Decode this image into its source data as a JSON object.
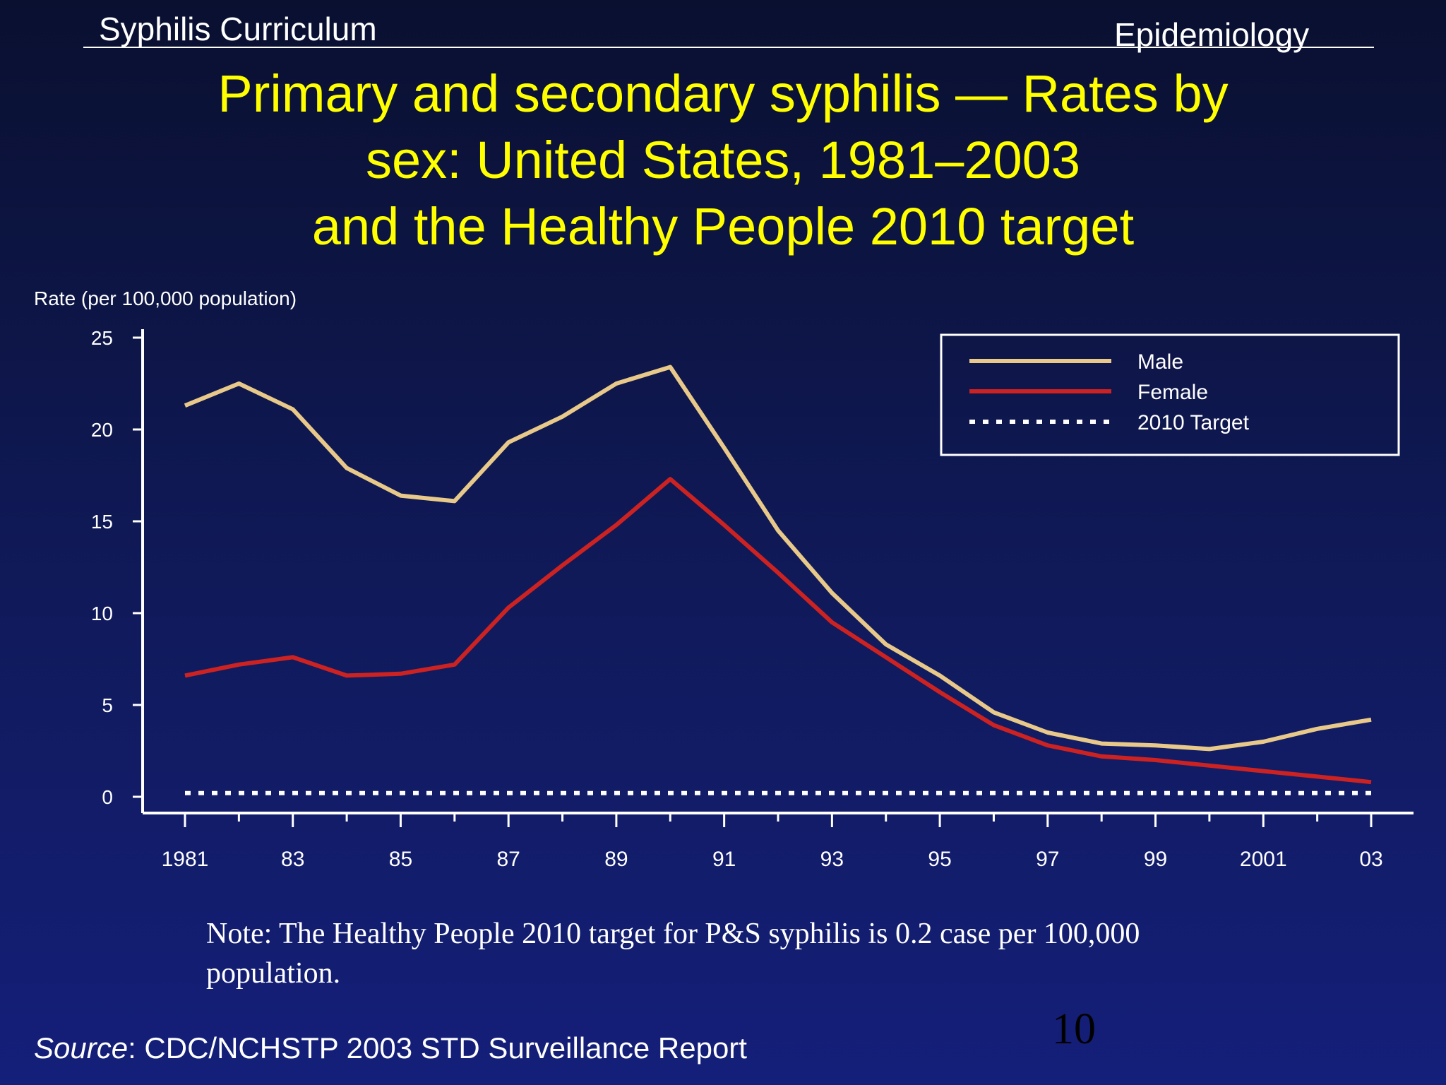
{
  "header": {
    "left": "Syphilis Curriculum",
    "right": "Epidemiology"
  },
  "slide_title": {
    "line1": "Primary and secondary syphilis — Rates by",
    "line2": "sex: United States, 1981–2003",
    "line3": "and the Healthy People 2010 target"
  },
  "note": "Note: The Healthy People 2010 target for P&S syphilis is 0.2 case per 100,000 population.",
  "page_number": "10",
  "source": {
    "label": "Source",
    "text": ": CDC/NCHSTP 2003 STD Surveillance Report"
  },
  "chart_data": {
    "type": "line",
    "ylabel": "Rate (per 100,000 population)",
    "xlabel": "",
    "ylim": [
      0,
      25
    ],
    "yticks": [
      "0",
      "5",
      "10",
      "15",
      "20",
      "25"
    ],
    "x": [
      1981,
      1982,
      1983,
      1984,
      1985,
      1986,
      1987,
      1988,
      1989,
      1990,
      1991,
      1992,
      1993,
      1994,
      1995,
      1996,
      1997,
      1998,
      1999,
      2000,
      2001,
      2002,
      2003
    ],
    "xtick_labels": [
      "1981",
      "83",
      "85",
      "87",
      "89",
      "91",
      "93",
      "95",
      "97",
      "99",
      "2001",
      "03"
    ],
    "grid": false,
    "legend_position": "top-right",
    "series": [
      {
        "name": "Male",
        "color": "#e8c98a",
        "style": "solid",
        "values": [
          21.3,
          22.5,
          21.1,
          17.9,
          16.4,
          16.1,
          19.3,
          20.7,
          22.5,
          23.4,
          19.0,
          14.5,
          11.1,
          8.3,
          6.6,
          4.6,
          3.5,
          2.9,
          2.8,
          2.6,
          3.0,
          3.7,
          4.2
        ]
      },
      {
        "name": "Female",
        "color": "#cc2222",
        "style": "solid",
        "values": [
          6.6,
          7.2,
          7.6,
          6.6,
          6.7,
          7.2,
          10.3,
          12.6,
          14.8,
          17.3,
          14.8,
          12.2,
          9.5,
          7.6,
          5.7,
          3.9,
          2.8,
          2.2,
          2.0,
          1.7,
          1.4,
          1.1,
          0.8
        ]
      },
      {
        "name": "2010 Target",
        "color": "#ffffff",
        "style": "dotted",
        "values": [
          0.2,
          0.2,
          0.2,
          0.2,
          0.2,
          0.2,
          0.2,
          0.2,
          0.2,
          0.2,
          0.2,
          0.2,
          0.2,
          0.2,
          0.2,
          0.2,
          0.2,
          0.2,
          0.2,
          0.2,
          0.2,
          0.2,
          0.2
        ]
      }
    ]
  }
}
